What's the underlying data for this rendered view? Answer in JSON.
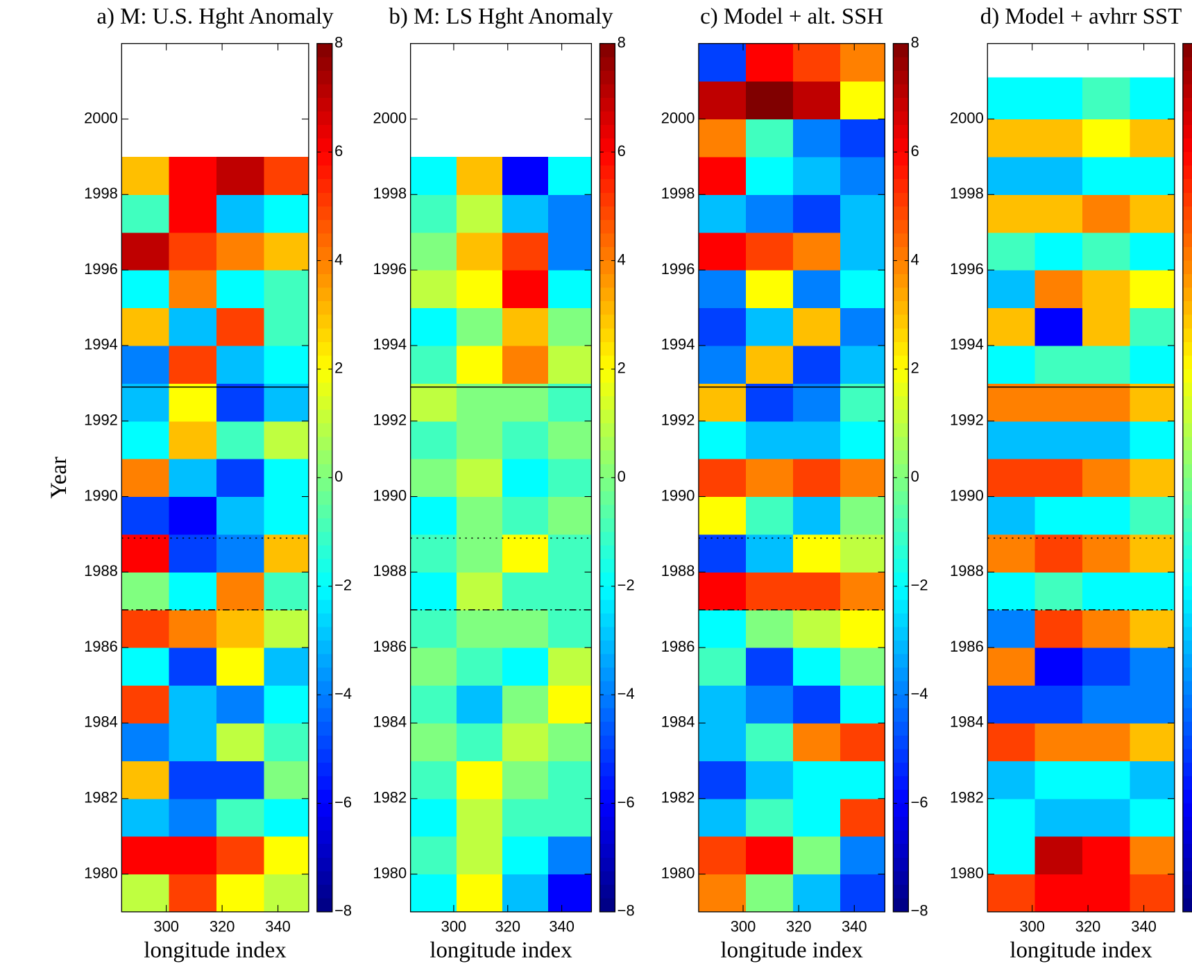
{
  "chart_data": [
    {
      "type": "heatmap",
      "title": "a) M: U.S. Hght Anomaly",
      "xlabel": "longitude index",
      "ylabel": "Year",
      "xlim": [
        284,
        351
      ],
      "ylim": [
        1979,
        2002
      ],
      "xticks": [
        300,
        320,
        340
      ],
      "yticks": [
        1980,
        1982,
        1984,
        1986,
        1988,
        1990,
        1992,
        1994,
        1996,
        1998,
        2000
      ],
      "clim": [
        -8,
        8
      ],
      "cticks": [
        {
          "value": -8,
          "label": "−8"
        },
        {
          "value": -6,
          "label": "−6"
        },
        {
          "value": -4,
          "label": "−4"
        },
        {
          "value": -2,
          "label": "−2"
        },
        0,
        2,
        4,
        6,
        8
      ],
      "hlines": [
        {
          "value": 1992.9,
          "style": "solid"
        },
        {
          "value": 1988.9,
          "style": "dotted"
        },
        {
          "value": 1987.0,
          "style": "dashdot"
        }
      ],
      "x_edges": [
        284,
        301,
        318,
        335,
        351
      ],
      "y_edges": [
        1979,
        1980,
        1981,
        1982,
        1983,
        1984,
        1985,
        1986,
        1987,
        1988,
        1989,
        1990,
        1991,
        1992,
        1993,
        1994,
        1995,
        1996,
        1997,
        1998,
        1999
      ],
      "z": [
        [
          1,
          5,
          2,
          1
        ],
        [
          6,
          6,
          5,
          2
        ],
        [
          -3,
          -4,
          -1,
          -2
        ],
        [
          3,
          -5,
          -5,
          0
        ],
        [
          -4,
          -3,
          1,
          -1
        ],
        [
          5,
          -3,
          -4,
          -2
        ],
        [
          -2,
          -5,
          2,
          -3
        ],
        [
          5,
          4,
          3,
          1
        ],
        [
          0,
          -2,
          4,
          -1
        ],
        [
          6,
          -5,
          -4,
          3
        ],
        [
          -5,
          -6,
          -3,
          -2
        ],
        [
          4,
          -3,
          -5,
          -2
        ],
        [
          -2,
          3,
          -1,
          1
        ],
        [
          -3,
          2,
          -5,
          -3
        ],
        [
          -4,
          5,
          -3,
          -2
        ],
        [
          3,
          -3,
          5,
          -1
        ],
        [
          -2,
          4,
          -2,
          -1
        ],
        [
          7,
          5,
          4,
          3
        ],
        [
          -1,
          6,
          -3,
          -2
        ],
        [
          3,
          6,
          7,
          5
        ]
      ]
    },
    {
      "type": "heatmap",
      "title": "b) M: LS Hght Anomaly",
      "xlabel": "longitude index",
      "xlim": [
        284,
        351
      ],
      "ylim": [
        1979,
        2002
      ],
      "xticks": [
        300,
        320,
        340
      ],
      "yticks": [
        1980,
        1982,
        1984,
        1986,
        1988,
        1990,
        1992,
        1994,
        1996,
        1998,
        2000
      ],
      "clim": [
        -8,
        8
      ],
      "cticks": [
        {
          "value": -8,
          "label": "−8"
        },
        {
          "value": -6,
          "label": "−6"
        },
        {
          "value": -4,
          "label": "−4"
        },
        {
          "value": -2,
          "label": "−2"
        },
        0,
        2,
        4,
        6,
        8
      ],
      "hlines": [
        {
          "value": 1992.9,
          "style": "solid"
        },
        {
          "value": 1988.9,
          "style": "dotted"
        },
        {
          "value": 1987.0,
          "style": "dashdot"
        }
      ],
      "x_edges": [
        284,
        301,
        318,
        335,
        351
      ],
      "y_edges": [
        1979,
        1980,
        1981,
        1982,
        1983,
        1984,
        1985,
        1986,
        1987,
        1988,
        1989,
        1990,
        1991,
        1992,
        1993,
        1994,
        1995,
        1996,
        1997,
        1998,
        1999
      ],
      "z": [
        [
          -2,
          2,
          -3,
          -6
        ],
        [
          -1,
          1,
          -2,
          -4
        ],
        [
          -2,
          1,
          -1,
          -1
        ],
        [
          -1,
          2,
          0,
          -1
        ],
        [
          0,
          -1,
          1,
          0
        ],
        [
          -1,
          -3,
          0,
          2
        ],
        [
          0,
          -1,
          -2,
          1
        ],
        [
          -1,
          0,
          0,
          -1
        ],
        [
          -2,
          1,
          -1,
          -1
        ],
        [
          -1,
          0,
          2,
          -1
        ],
        [
          -2,
          0,
          -1,
          0
        ],
        [
          0,
          1,
          -2,
          -1
        ],
        [
          -1,
          0,
          -1,
          0
        ],
        [
          1,
          0,
          0,
          -1
        ],
        [
          -1,
          2,
          4,
          1
        ],
        [
          -2,
          0,
          3,
          0
        ],
        [
          1,
          2,
          6,
          -2
        ],
        [
          0,
          3,
          5,
          -4
        ],
        [
          -1,
          1,
          -3,
          -4
        ],
        [
          -2,
          3,
          -6,
          -2
        ]
      ]
    },
    {
      "type": "heatmap",
      "title": "c) Model + alt. SSH",
      "xlabel": "longitude index",
      "xlim": [
        284,
        351
      ],
      "ylim": [
        1979,
        2002
      ],
      "xticks": [
        300,
        320,
        340
      ],
      "yticks": [
        1980,
        1982,
        1984,
        1986,
        1988,
        1990,
        1992,
        1994,
        1996,
        1998,
        2000
      ],
      "clim": [
        -8,
        8
      ],
      "cticks": [
        {
          "value": -8,
          "label": "−8"
        },
        {
          "value": -6,
          "label": "−6"
        },
        {
          "value": -4,
          "label": "−4"
        },
        {
          "value": -2,
          "label": "−2"
        },
        0,
        2,
        4,
        6,
        8
      ],
      "hlines": [
        {
          "value": 1992.9,
          "style": "solid"
        },
        {
          "value": 1988.9,
          "style": "dotted"
        },
        {
          "value": 1987.0,
          "style": "dashdot"
        }
      ],
      "x_edges": [
        284,
        301,
        318,
        335,
        351
      ],
      "y_edges": [
        1979,
        1980,
        1981,
        1982,
        1983,
        1984,
        1985,
        1986,
        1987,
        1988,
        1989,
        1990,
        1991,
        1992,
        1993,
        1994,
        1995,
        1996,
        1997,
        1998,
        1999,
        2000,
        2001,
        2002
      ],
      "z": [
        [
          4,
          0,
          -3,
          -5
        ],
        [
          5,
          6,
          0,
          -4
        ],
        [
          -3,
          -1,
          -2,
          5
        ],
        [
          -5,
          -3,
          -2,
          -2
        ],
        [
          -3,
          -1,
          4,
          5
        ],
        [
          -3,
          -4,
          -5,
          -2
        ],
        [
          -1,
          -5,
          -2,
          0
        ],
        [
          -2,
          0,
          1,
          2
        ],
        [
          6,
          5,
          5,
          4
        ],
        [
          -5,
          -3,
          2,
          1
        ],
        [
          2,
          -1,
          -3,
          0
        ],
        [
          5,
          4,
          5,
          4
        ],
        [
          -2,
          -3,
          -3,
          -2
        ],
        [
          3,
          -5,
          -4,
          -1
        ],
        [
          -4,
          3,
          -5,
          -3
        ],
        [
          -5,
          -3,
          3,
          -4
        ],
        [
          -4,
          2,
          -4,
          -2
        ],
        [
          6,
          5,
          4,
          -3
        ],
        [
          -3,
          -4,
          -5,
          -3
        ],
        [
          6,
          -2,
          -3,
          -4
        ],
        [
          4,
          -1,
          -4,
          -5
        ],
        [
          7,
          8,
          7,
          2
        ],
        [
          -5,
          6,
          5,
          4
        ]
      ]
    },
    {
      "type": "heatmap",
      "title": "d) Model + avhrr SST",
      "xlabel": "longitude index",
      "xlim": [
        284,
        351
      ],
      "ylim": [
        1979,
        2002
      ],
      "xticks": [
        300,
        320,
        340
      ],
      "yticks": [
        1980,
        1982,
        1984,
        1986,
        1988,
        1990,
        1992,
        1994,
        1996,
        1998,
        2000
      ],
      "clim": [
        -8,
        8
      ],
      "hlines": [
        {
          "value": 1992.9,
          "style": "solid"
        },
        {
          "value": 1988.9,
          "style": "dotted"
        },
        {
          "value": 1987.0,
          "style": "dashdot"
        }
      ],
      "x_edges": [
        284,
        301,
        318,
        335,
        351
      ],
      "y_edges": [
        1979,
        1980,
        1981,
        1982,
        1983,
        1984,
        1985,
        1986,
        1987,
        1988,
        1989,
        1990,
        1991,
        1992,
        1993,
        1994,
        1995,
        1996,
        1997,
        1998,
        1999,
        2000,
        2001.1
      ],
      "z": [
        [
          5,
          6,
          6,
          5
        ],
        [
          -2,
          7,
          6,
          4
        ],
        [
          -2,
          -3,
          -3,
          -2
        ],
        [
          -3,
          -2,
          -2,
          -3
        ],
        [
          5,
          4,
          4,
          3
        ],
        [
          -5,
          -5,
          -4,
          -4
        ],
        [
          4,
          -6,
          -5,
          -4
        ],
        [
          -4,
          5,
          4,
          3
        ],
        [
          -2,
          -1,
          -2,
          -2
        ],
        [
          4,
          5,
          4,
          3
        ],
        [
          -3,
          -2,
          -2,
          -1
        ],
        [
          5,
          5,
          4,
          3
        ],
        [
          -3,
          -3,
          -3,
          -2
        ],
        [
          4,
          4,
          4,
          3
        ],
        [
          -2,
          -1,
          -1,
          -2
        ],
        [
          3,
          -6,
          3,
          -1
        ],
        [
          -3,
          4,
          3,
          2
        ],
        [
          -1,
          -2,
          -1,
          -2
        ],
        [
          3,
          3,
          4,
          3
        ],
        [
          -3,
          -3,
          -2,
          -2
        ],
        [
          3,
          3,
          2,
          3
        ],
        [
          -2,
          -2,
          -1,
          -2
        ]
      ]
    }
  ]
}
